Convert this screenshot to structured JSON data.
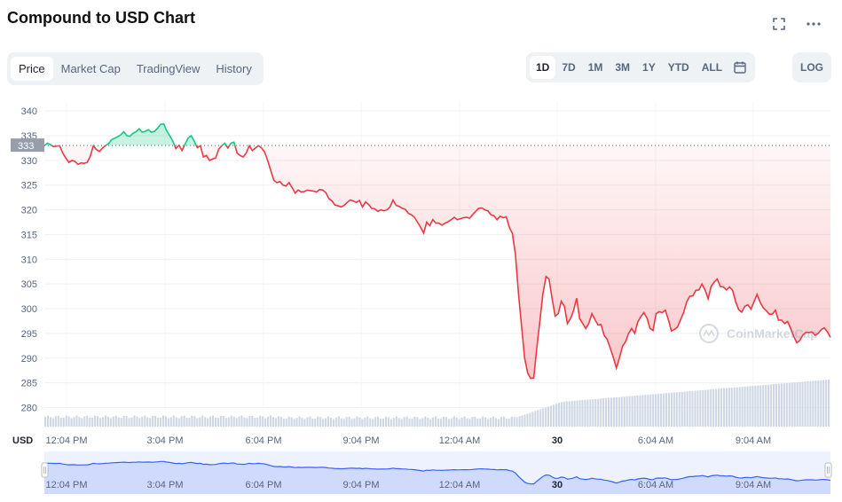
{
  "header": {
    "title": "Compound to USD Chart",
    "fullscreen_icon": "fullscreen-icon",
    "more_icon": "more-horizontal-icon"
  },
  "tabs": [
    {
      "label": "Price",
      "active": true
    },
    {
      "label": "Market Cap",
      "active": false
    },
    {
      "label": "TradingView",
      "active": false
    },
    {
      "label": "History",
      "active": false
    }
  ],
  "ranges": [
    {
      "label": "1D",
      "active": true
    },
    {
      "label": "7D",
      "active": false
    },
    {
      "label": "1M",
      "active": false
    },
    {
      "label": "3M",
      "active": false
    },
    {
      "label": "1Y",
      "active": false
    },
    {
      "label": "YTD",
      "active": false
    },
    {
      "label": "ALL",
      "active": false
    }
  ],
  "calendar_icon": "calendar-icon",
  "log_label": "LOG",
  "currency_label": "USD",
  "watermark": "CoinMarketCap",
  "colors": {
    "up": "#16c784",
    "down": "#ea3943",
    "volume": "#cfd6e4",
    "navigator": "#3861fb"
  },
  "chart_data": {
    "type": "line",
    "title": "",
    "xlabel": "",
    "ylabel": "",
    "ylim": [
      276.5,
      342
    ],
    "yticks": [
      340,
      335,
      330,
      325,
      320,
      315,
      310,
      305,
      300,
      295,
      290,
      285,
      280
    ],
    "x_tick_labels": [
      "12:04 PM",
      "3:04 PM",
      "6:04 PM",
      "9:04 PM",
      "12:04 AM",
      "30",
      "6:04 AM",
      "9:04 AM"
    ],
    "reference_price": 333,
    "reference_label": "333",
    "series": [
      {
        "values": [
          333,
          333.5,
          333.2,
          332.8,
          332.9,
          333,
          331.5,
          330.5,
          329.6,
          330,
          329.8,
          329.2,
          329.5,
          329.4,
          329.6,
          330.8,
          333,
          332.2,
          331.8,
          332.5,
          333,
          333.4,
          334.2,
          334.5,
          334.8,
          335.2,
          335.8,
          335,
          334.9,
          335.5,
          335.8,
          336.4,
          335.7,
          335.9,
          336.2,
          335.7,
          335.9,
          336.5,
          337.3,
          337.4,
          336,
          335,
          333.9,
          332.4,
          333.1,
          332,
          333.3,
          334.5,
          335,
          333.9,
          332.6,
          333,
          330.7,
          331,
          330,
          330.3,
          330.5,
          332.3,
          333,
          333.5,
          332.5,
          333.5,
          333.7,
          331.5,
          331,
          330.7,
          331.5,
          333,
          332,
          332.5,
          333,
          332.5,
          331.7,
          330,
          328,
          326,
          325.5,
          325.7,
          325,
          324.8,
          325.5,
          324.5,
          323.4,
          324,
          323.6,
          323.7,
          324,
          323.9,
          323.8,
          323.6,
          324.1,
          324,
          323.5,
          322.3,
          321.8,
          321,
          320.8,
          320.6,
          320.9,
          321.5,
          322,
          321.8,
          321.5,
          321.9,
          320.6,
          321.6,
          321.1,
          320.3,
          320.2,
          319.7,
          320,
          319.8,
          320,
          320.6,
          322,
          320.9,
          320.7,
          320.3,
          320.1,
          319.3,
          319,
          318.5,
          317.5,
          316.5,
          315.3,
          317.5,
          316.8,
          318,
          317.3,
          317.3,
          316.9,
          317.3,
          317.6,
          318,
          318.5,
          318,
          318.2,
          318.4,
          318.5,
          318.3,
          319,
          319.7,
          320.3,
          320.4,
          320,
          319.8,
          319,
          318.8,
          318,
          318.7,
          318.4,
          318.6,
          316.5,
          315.2,
          311,
          303,
          296.5,
          290,
          287,
          285.9,
          286,
          292,
          297.5,
          303,
          306.5,
          306,
          302,
          298.5,
          299,
          301.5,
          300.5,
          297,
          298,
          299.6,
          302.1,
          298,
          297,
          296,
          297,
          299,
          297.8,
          296.7,
          296.8,
          294.6,
          293.8,
          292,
          290.2,
          288,
          290,
          292.4,
          293.3,
          295,
          296,
          295,
          297.3,
          298.4,
          299.2,
          298.1,
          296,
          295.6,
          299,
          299.4,
          299.2,
          299.7,
          297.8,
          295.5,
          295.8,
          296.3,
          297.8,
          299.2,
          301.4,
          302.5,
          302.6,
          303.7,
          303.8,
          305,
          303.8,
          302,
          304.5,
          305.4,
          306,
          304.5,
          304.4,
          303.8,
          304.4,
          303.7,
          301.4,
          299.8,
          299.3,
          300.5,
          300.8,
          299.9,
          301.4,
          302.9,
          301.3,
          300.2,
          299.6,
          298.9,
          298.9,
          299.7,
          297.7,
          297.7,
          297,
          297.4,
          296,
          294.4,
          293.1,
          293.6,
          294.7,
          295.2,
          295.2,
          295.3,
          294.6,
          295,
          295.8,
          296.1,
          295.3,
          294.2
        ]
      }
    ]
  }
}
